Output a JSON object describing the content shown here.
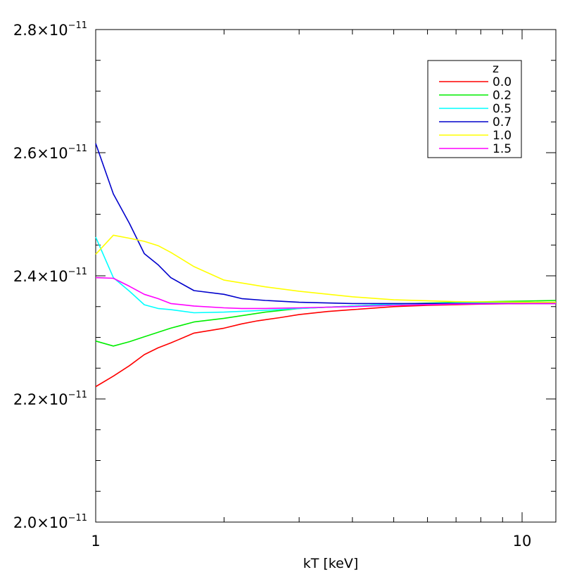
{
  "chart_data": {
    "type": "line",
    "xlabel": "kT [keV]",
    "ylabel": "",
    "xscale": "log",
    "xlim": [
      1.0,
      12.0
    ],
    "ylim": [
      2e-11,
      2.8e-11
    ],
    "x_tick_labels": [
      {
        "value": 1,
        "label": "1"
      },
      {
        "value": 10,
        "label": "10"
      }
    ],
    "y_tick_labels": [
      {
        "value": 2e-11,
        "mantissa": "2.0×10",
        "exponent": "−11"
      },
      {
        "value": 2.2e-11,
        "mantissa": "2.2×10",
        "exponent": "−11"
      },
      {
        "value": 2.4e-11,
        "mantissa": "2.4×10",
        "exponent": "−11"
      },
      {
        "value": 2.6e-11,
        "mantissa": "2.6×10",
        "exponent": "−11"
      },
      {
        "value": 2.8e-11,
        "mantissa": "2.8×10",
        "exponent": "−11"
      }
    ],
    "legend_title": "z",
    "legend_position": "top-right",
    "grid": false,
    "series": [
      {
        "name": "0.0",
        "color": "#ff0000",
        "x": [
          1.0,
          1.1,
          1.2,
          1.3,
          1.4,
          1.5,
          1.7,
          2.0,
          2.2,
          2.4,
          2.7,
          3.0,
          3.5,
          4.0,
          5.0,
          6.0,
          8.0,
          10.0,
          12.0
        ],
        "y": [
          2.22e-11,
          2.237e-11,
          2.254e-11,
          2.272e-11,
          2.283e-11,
          2.291e-11,
          2.307e-11,
          2.315e-11,
          2.322e-11,
          2.327e-11,
          2.332e-11,
          2.337e-11,
          2.342e-11,
          2.345e-11,
          2.35e-11,
          2.352e-11,
          2.354e-11,
          2.355e-11,
          2.356e-11
        ]
      },
      {
        "name": "0.2",
        "color": "#00ee00",
        "x": [
          1.0,
          1.1,
          1.2,
          1.3,
          1.5,
          1.7,
          2.0,
          2.5,
          3.0,
          4.0,
          5.0,
          7.0,
          10.0,
          12.0
        ],
        "y": [
          2.294e-11,
          2.286e-11,
          2.293e-11,
          2.301e-11,
          2.315e-11,
          2.325e-11,
          2.331e-11,
          2.341e-11,
          2.347e-11,
          2.351e-11,
          2.354e-11,
          2.357e-11,
          2.359e-11,
          2.36e-11
        ]
      },
      {
        "name": "0.5",
        "color": "#00ffff",
        "x": [
          1.0,
          1.1,
          1.2,
          1.3,
          1.4,
          1.5,
          1.7,
          2.0,
          2.5,
          3.0,
          4.0,
          5.0,
          7.0,
          10.0,
          12.0
        ],
        "y": [
          2.463e-11,
          2.397e-11,
          2.375e-11,
          2.353e-11,
          2.347e-11,
          2.345e-11,
          2.34e-11,
          2.341e-11,
          2.344e-11,
          2.347e-11,
          2.351e-11,
          2.354e-11,
          2.356e-11,
          2.357e-11,
          2.357e-11
        ]
      },
      {
        "name": "0.7",
        "color": "#0000cc",
        "x": [
          1.0,
          1.1,
          1.2,
          1.3,
          1.4,
          1.5,
          1.7,
          2.0,
          2.2,
          2.5,
          3.0,
          4.0,
          5.0,
          7.0,
          10.0,
          12.0
        ],
        "y": [
          2.615e-11,
          2.533e-11,
          2.485e-11,
          2.436e-11,
          2.418e-11,
          2.397e-11,
          2.376e-11,
          2.37e-11,
          2.363e-11,
          2.36e-11,
          2.357e-11,
          2.355e-11,
          2.355e-11,
          2.355e-11,
          2.355e-11,
          2.355e-11
        ]
      },
      {
        "name": "1.0",
        "color": "#ffff00",
        "x": [
          1.0,
          1.1,
          1.2,
          1.3,
          1.4,
          1.5,
          1.7,
          2.0,
          2.5,
          3.0,
          4.0,
          5.0,
          7.0,
          10.0,
          12.0
        ],
        "y": [
          2.435e-11,
          2.466e-11,
          2.461e-11,
          2.456e-11,
          2.449e-11,
          2.438e-11,
          2.415e-11,
          2.393e-11,
          2.382e-11,
          2.375e-11,
          2.366e-11,
          2.361e-11,
          2.358e-11,
          2.357e-11,
          2.357e-11
        ]
      },
      {
        "name": "1.5",
        "color": "#ff00ff",
        "x": [
          1.0,
          1.1,
          1.2,
          1.3,
          1.4,
          1.5,
          1.7,
          2.0,
          2.2,
          2.5,
          3.0,
          4.0,
          5.0,
          7.0,
          10.0,
          12.0
        ],
        "y": [
          2.397e-11,
          2.396e-11,
          2.383e-11,
          2.37e-11,
          2.363e-11,
          2.355e-11,
          2.351e-11,
          2.348e-11,
          2.347e-11,
          2.347e-11,
          2.348e-11,
          2.35e-11,
          2.352e-11,
          2.354e-11,
          2.355e-11,
          2.355e-11
        ]
      }
    ]
  }
}
